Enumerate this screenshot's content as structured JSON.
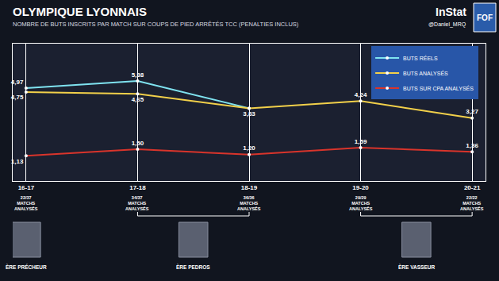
{
  "chart_data": {
    "type": "line",
    "title": "OLYMPIQUE LYONNAIS",
    "subtitle": "NOMBRE DE BUTS INSCRITS PAR MATCH SUR COUPS DE PIED ARRÊTÉS TCC (PENALTIES INCLUS)",
    "source": "InStat",
    "credit": "@Daniel_MRQ",
    "badge": "FOF",
    "categories": [
      "16-17",
      "17-18",
      "18-19",
      "19-20",
      "20-21"
    ],
    "tick_sublabels": [
      "22/37 MATCHS ANALYSÉS",
      "34/37 MATCHS ANALYSÉS",
      "36/36 MATCHS ANALYSÉS",
      "29/29 MATCHS ANALYSÉS",
      "22/22 MATCHS ANALYSÉS"
    ],
    "series": [
      {
        "name": "BUTS RÉELS",
        "color": "#7fe3f0",
        "values": [
          4.97,
          5.38,
          3.83,
          null,
          null
        ],
        "value_labels": [
          "4,97",
          "5,38",
          null,
          null,
          null
        ]
      },
      {
        "name": "BUTS ANALYSÉS",
        "color": "#f2d04a",
        "values": [
          4.75,
          4.65,
          3.83,
          4.24,
          3.27
        ],
        "value_labels": [
          "4,75",
          "4,65",
          "3,83",
          "4,24",
          "3,27"
        ]
      },
      {
        "name": "BUTS SUR CPA ANALYSÉS",
        "color": "#d9342b",
        "values": [
          1.13,
          1.5,
          1.2,
          1.59,
          1.36
        ],
        "value_labels": [
          "1,13",
          "1,50",
          "1,20",
          "1,59",
          "1,36"
        ]
      }
    ],
    "ylim": [
      -0.3,
      7.5
    ],
    "grid": "x",
    "legend": "top right",
    "data_labels": true,
    "tick_labels": "x",
    "marker": "circle",
    "annotations": [
      {
        "text": "ÈRE PRÉCHEUR",
        "categories": [
          "16-17"
        ]
      },
      {
        "text": "ÈRE PEDROS",
        "categories": [
          "17-18",
          "18-19"
        ]
      },
      {
        "text": "ÈRE VASSEUR",
        "categories": [
          "19-20",
          "20-21"
        ]
      }
    ]
  }
}
